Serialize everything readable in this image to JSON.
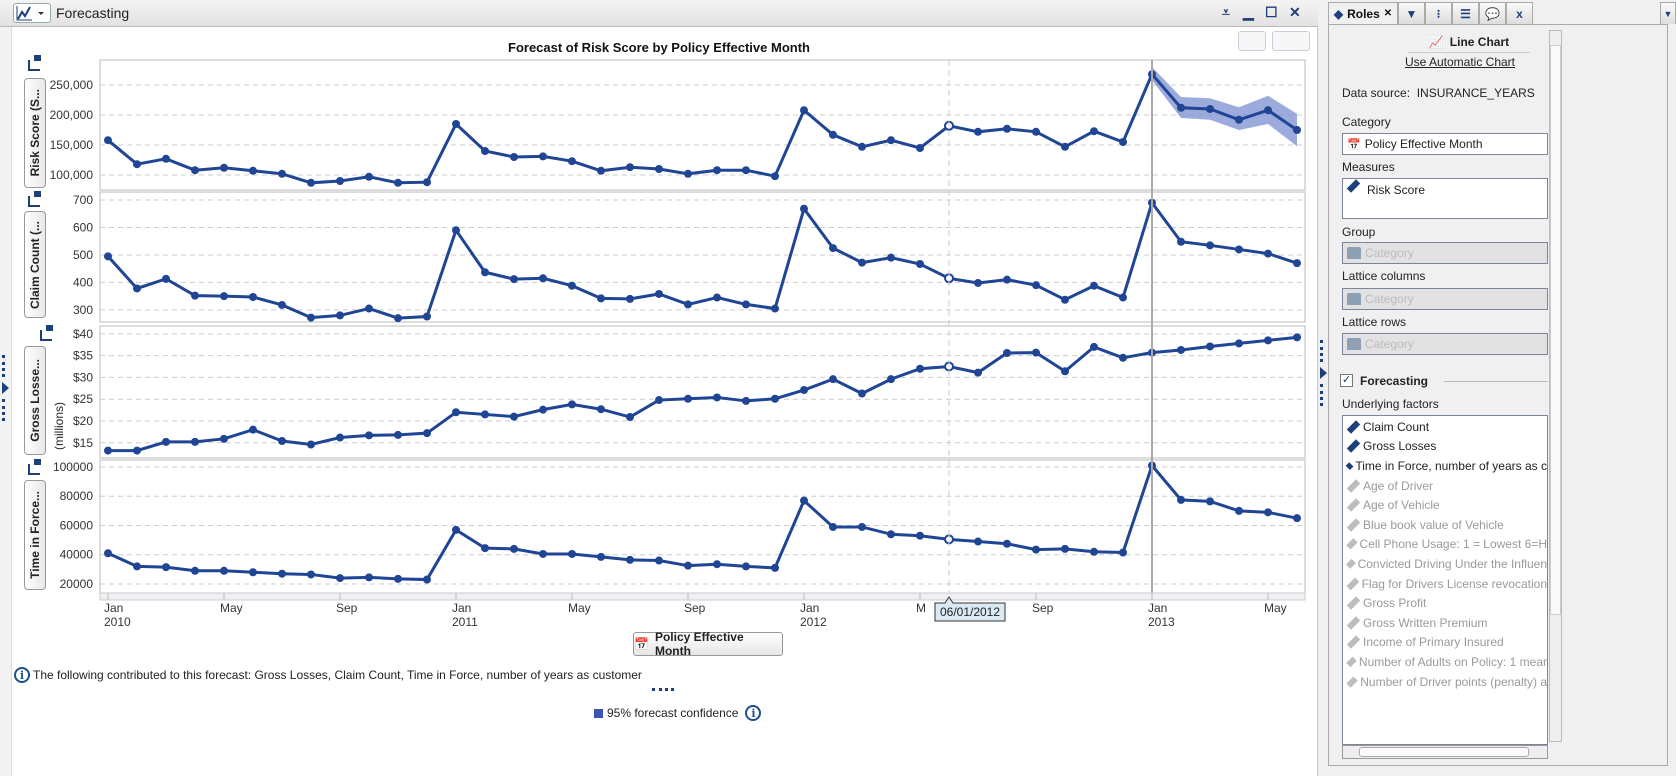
{
  "window": {
    "title": "Forecasting"
  },
  "chart_data": {
    "type": "line",
    "title": "Forecast of Risk Score by Policy Effective Month",
    "xlabel": "Policy Effective Month",
    "x_ticks": [
      {
        "i": 0,
        "label": "Jan",
        "year": "2010"
      },
      {
        "i": 4,
        "label": "May"
      },
      {
        "i": 8,
        "label": "Sep"
      },
      {
        "i": 12,
        "label": "Jan",
        "year": "2011"
      },
      {
        "i": 16,
        "label": "May"
      },
      {
        "i": 20,
        "label": "Sep"
      },
      {
        "i": 24,
        "label": "Jan",
        "year": "2012"
      },
      {
        "i": 28,
        "label": "M"
      },
      {
        "i": 32,
        "label": "Sep"
      },
      {
        "i": 36,
        "label": "Jan",
        "year": "2013"
      },
      {
        "i": 40,
        "label": "May"
      }
    ],
    "x_range": "Jan 2010 - Jun 2013 (monthly)",
    "forecast_start_index": 36,
    "hover": {
      "index": 29,
      "label": "06/01/2012"
    },
    "panels": [
      {
        "name": "Risk Score (S...",
        "ylim": [
          75000,
          291667
        ],
        "ticks": [
          {
            "v": 100000,
            "l": "100,000"
          },
          {
            "v": 150000,
            "l": "150,000"
          },
          {
            "v": 200000,
            "l": "200,000"
          },
          {
            "v": 250000,
            "l": "250,000"
          }
        ],
        "values": [
          158000,
          118000,
          127000,
          108000,
          112000,
          107000,
          102000,
          87000,
          90000,
          97000,
          87000,
          88000,
          185000,
          140000,
          130000,
          131000,
          123000,
          107000,
          113000,
          110000,
          102000,
          108000,
          108000,
          98000,
          208000,
          167000,
          147000,
          158000,
          145000,
          182000,
          172000,
          177000,
          172000,
          147000,
          173000,
          155000,
          268000,
          212000,
          210000,
          192000,
          208000,
          175000
        ],
        "band_lower": [
          258000,
          195000,
          192000,
          175000,
          185000,
          148000
        ],
        "band_upper": [
          280000,
          230000,
          228000,
          213000,
          232000,
          202000
        ]
      },
      {
        "name": "Claim Count (...",
        "ylim": [
          256,
          729
        ],
        "ticks": [
          {
            "v": 300,
            "l": "300"
          },
          {
            "v": 400,
            "l": "400"
          },
          {
            "v": 500,
            "l": "500"
          },
          {
            "v": 600,
            "l": "600"
          },
          {
            "v": 700,
            "l": "700"
          }
        ],
        "values": [
          495,
          378,
          413,
          352,
          350,
          347,
          318,
          272,
          280,
          305,
          270,
          276,
          590,
          437,
          412,
          415,
          388,
          342,
          340,
          358,
          320,
          345,
          320,
          305,
          668,
          525,
          472,
          490,
          467,
          415,
          398,
          410,
          390,
          337,
          388,
          345,
          690,
          548,
          535,
          520,
          505,
          470
        ]
      },
      {
        "name": "Gross Losse...",
        "unit": "(millions)",
        "ylim": [
          11.5,
          41.8
        ],
        "ticks": [
          {
            "v": 15,
            "l": "$15"
          },
          {
            "v": 20,
            "l": "$20"
          },
          {
            "v": 25,
            "l": "$25"
          },
          {
            "v": 30,
            "l": "$30"
          },
          {
            "v": 35,
            "l": "$35"
          },
          {
            "v": 40,
            "l": "$40"
          }
        ],
        "values": [
          13.2,
          13.2,
          15.2,
          15.2,
          15.9,
          18,
          15.4,
          14.6,
          16.2,
          16.7,
          16.8,
          17.2,
          22,
          21.5,
          21,
          22.6,
          23.8,
          22.7,
          20.9,
          24.8,
          25.1,
          25.4,
          24.6,
          25.1,
          27.1,
          29.6,
          26.3,
          29.6,
          32,
          32.5,
          31.1,
          35.6,
          35.7,
          31.4,
          37,
          34.5,
          35.7,
          36.3,
          37.1,
          37.8,
          38.5,
          39.2
        ]
      },
      {
        "name": "Time in Force...",
        "ylim": [
          13800,
          104800
        ],
        "ticks": [
          {
            "v": 20000,
            "l": "20000"
          },
          {
            "v": 40000,
            "l": "40000"
          },
          {
            "v": 60000,
            "l": "60000"
          },
          {
            "v": 80000,
            "l": "80000"
          },
          {
            "v": 100000,
            "l": "100000"
          }
        ],
        "values": [
          41000,
          32000,
          31500,
          29000,
          29000,
          28000,
          27000,
          26500,
          24000,
          24500,
          23500,
          23000,
          57000,
          44500,
          44000,
          40500,
          40500,
          38500,
          36500,
          36000,
          32500,
          33500,
          32000,
          31000,
          77000,
          59000,
          59000,
          54000,
          53000,
          50500,
          49000,
          47500,
          43500,
          44000,
          42000,
          41500,
          101000,
          77500,
          76500,
          70000,
          69000,
          65000
        ]
      }
    ],
    "legend": "95% forecast confidence",
    "colors": {
      "line": "#1f4594",
      "band": "#7b8fd0"
    }
  },
  "footer": {
    "info": "The following contributed to this forecast: Gross Losses, Claim Count, Time in Force, number of years as customer"
  },
  "roles": {
    "tab_label": "Roles",
    "chart_type": "Line Chart",
    "auto_link": "Use Automatic Chart",
    "data_source_label": "Data source:",
    "data_source": "INSURANCE_YEARS",
    "category_label": "Category",
    "category_value": "Policy Effective Month",
    "measures_label": "Measures",
    "measures": [
      "Risk Score"
    ],
    "group_label": "Group",
    "lattice_columns_label": "Lattice columns",
    "lattice_rows_label": "Lattice rows",
    "placeholder": "Category",
    "forecasting_label": "Forecasting",
    "underlying_label": "Underlying factors",
    "factors_on": [
      "Claim Count",
      "Gross Losses",
      "Time in Force, number of years as c"
    ],
    "factors_off": [
      "Age of Driver",
      "Age of Vehicle",
      "Blue book value of Vehicle",
      "Cell Phone Usage: 1 = Lowest 6=H",
      "Convicted Driving Under the Influen",
      "Flag for Drivers License revocation",
      "Gross Profit",
      "Gross Written Premium",
      "Income of Primary Insured",
      "Number of Adults on Policy: 1 mear",
      "Number of Driver points (penalty) a"
    ]
  }
}
